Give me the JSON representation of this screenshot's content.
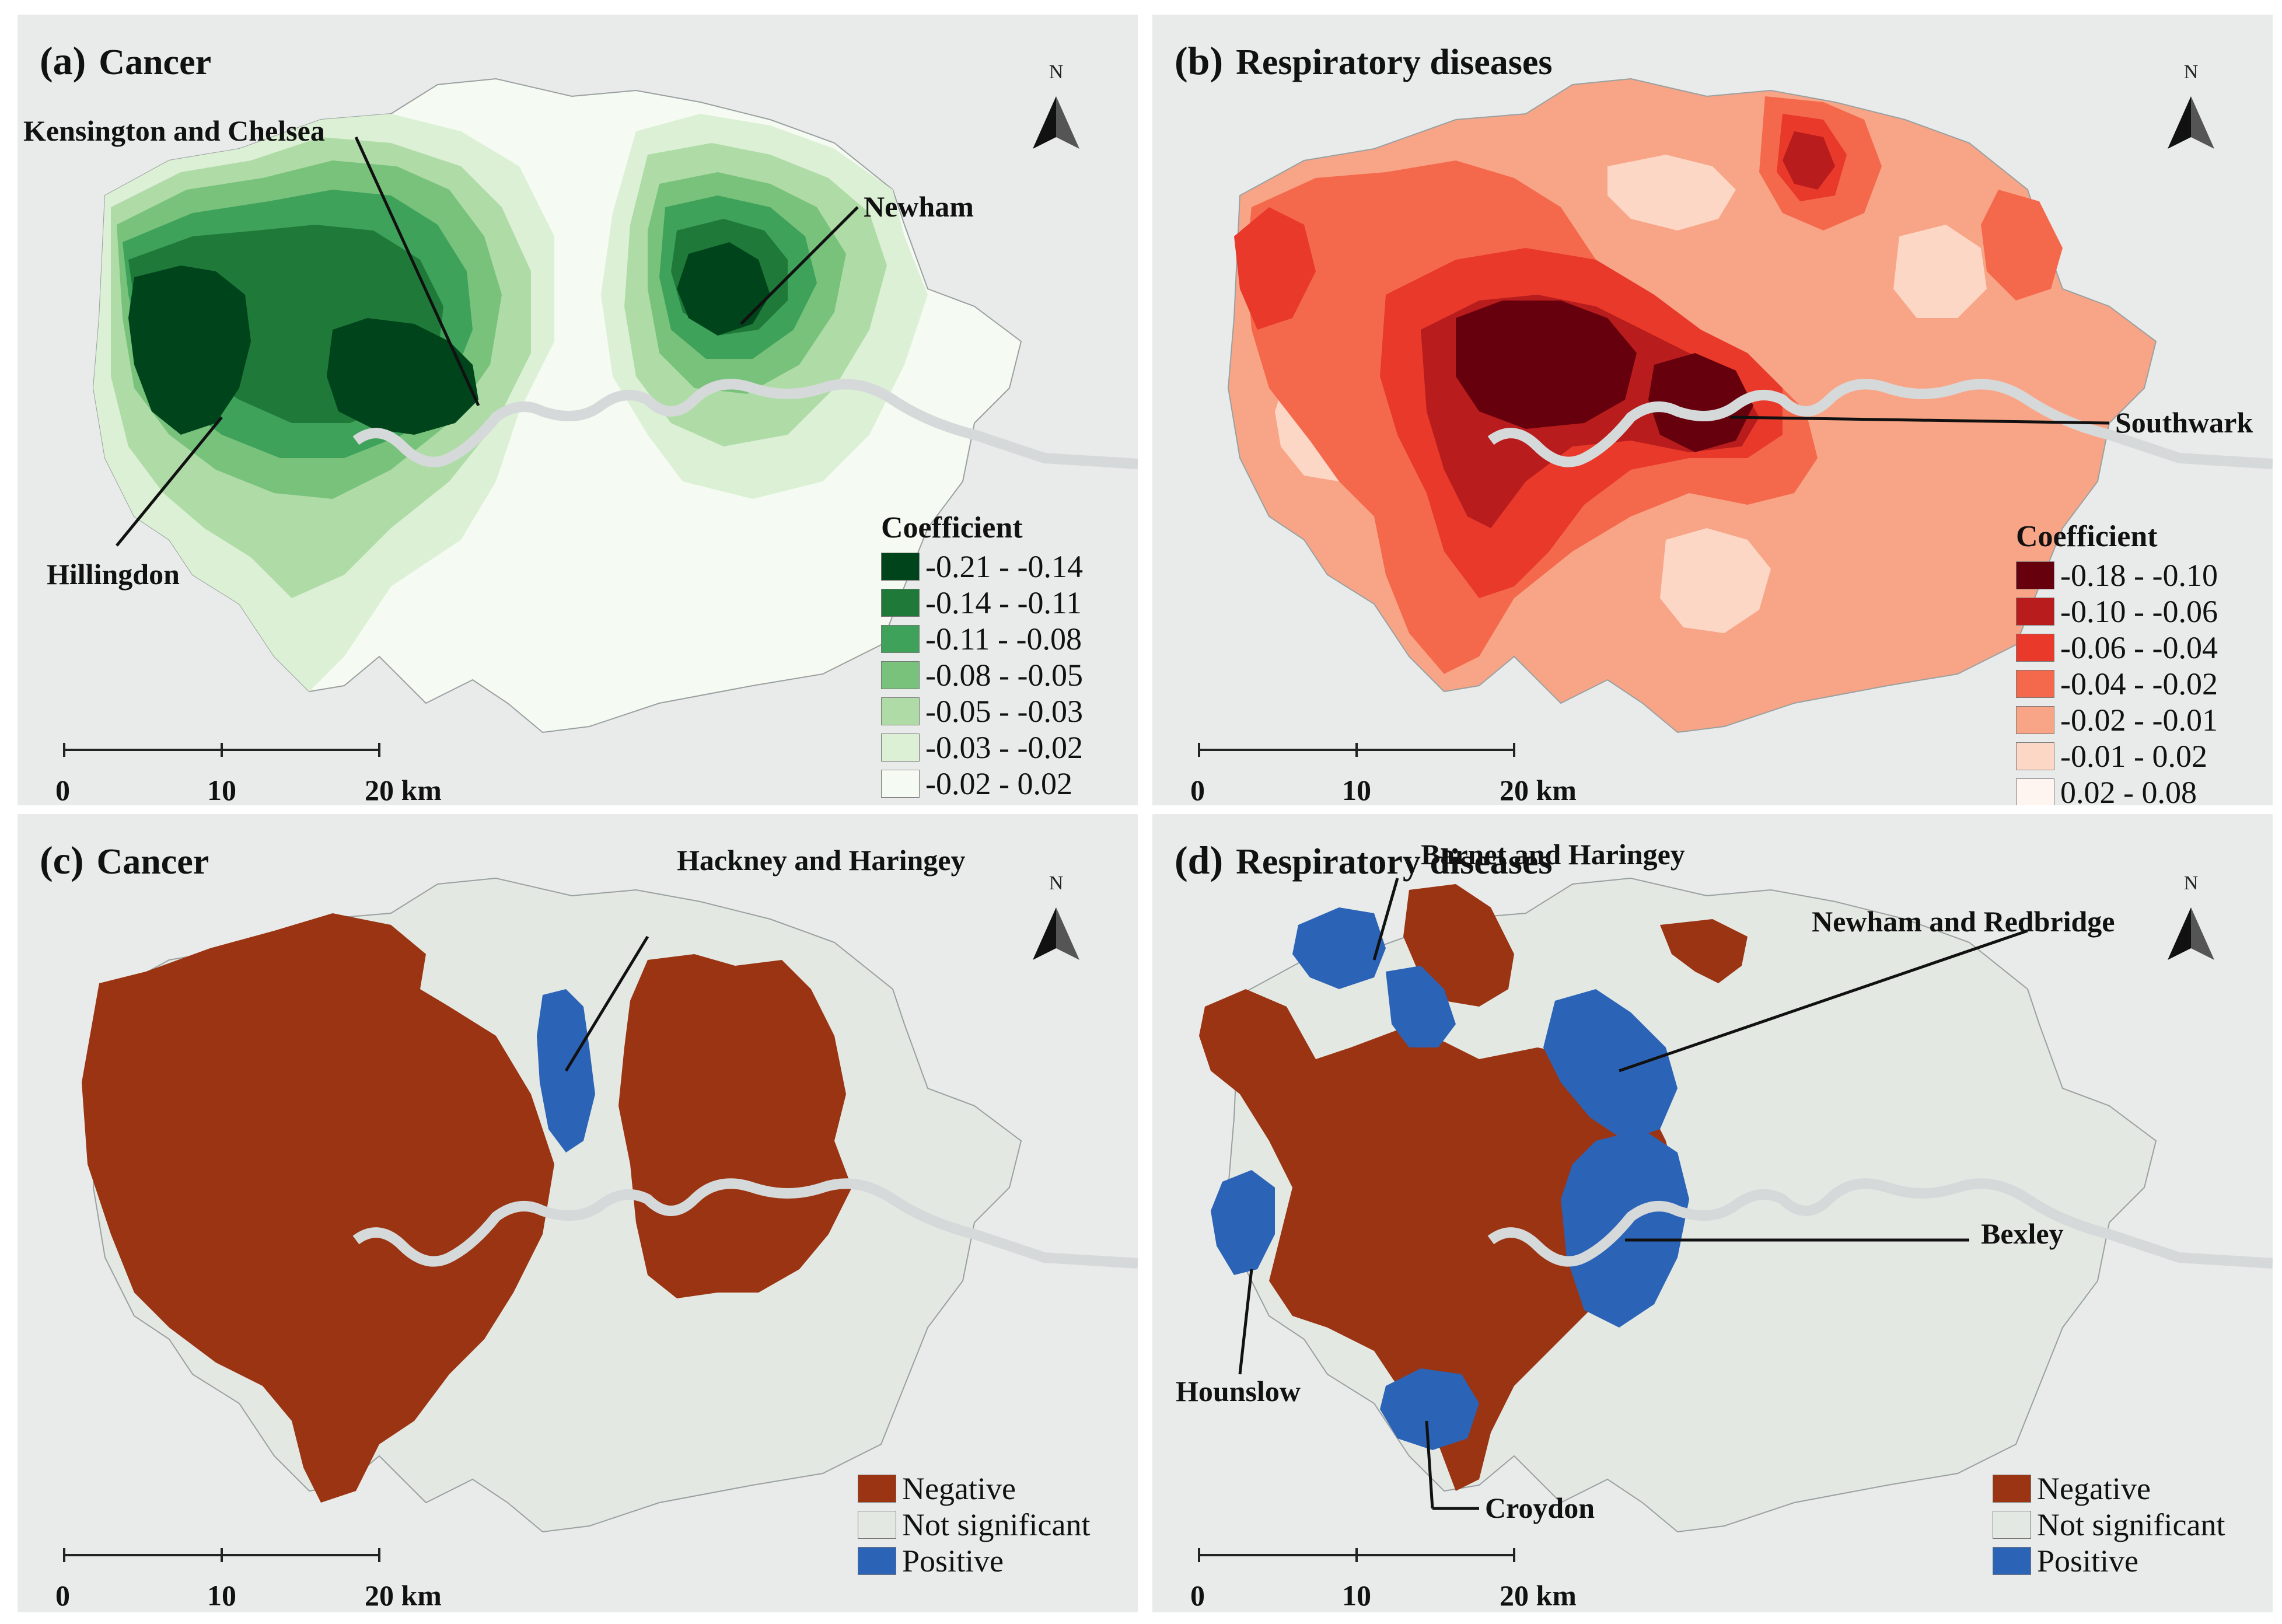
{
  "panels": [
    {
      "letter": "(a)",
      "title": "Cancer",
      "callouts": [
        "Kensington and Chelsea",
        "Newham",
        "Hillingdon"
      ],
      "legend": {
        "title": "Coefficient",
        "items": [
          {
            "label": "-0.21 - -0.14",
            "color": "#00441b"
          },
          {
            "label": "-0.14 - -0.11",
            "color": "#1f7a3a"
          },
          {
            "label": "-0.11 - -0.08",
            "color": "#3fa25a"
          },
          {
            "label": "-0.08 - -0.05",
            "color": "#79c27c"
          },
          {
            "label": "-0.05 - -0.03",
            "color": "#afdca6"
          },
          {
            "label": "-0.03 - -0.02",
            "color": "#dbf0d4"
          },
          {
            "label": "-0.02 -  0.02",
            "color": "#f5fbf2"
          }
        ]
      },
      "scale": {
        "ticks": [
          "0",
          "10",
          "20 km"
        ]
      },
      "north": "N"
    },
    {
      "letter": "(b)",
      "title": "Respiratory diseases",
      "callouts": [
        "Southwark"
      ],
      "legend": {
        "title": "Coefficient",
        "items": [
          {
            "label": "-0.18 - -0.10",
            "color": "#67000d"
          },
          {
            "label": "-0.10 - -0.06",
            "color": "#b91c1c"
          },
          {
            "label": "-0.06 - -0.04",
            "color": "#e8392a"
          },
          {
            "label": "-0.04 - -0.02",
            "color": "#f4694c"
          },
          {
            "label": "-0.02 - -0.01",
            "color": "#f8a587"
          },
          {
            "label": "-0.01 - 0.02",
            "color": "#fcd7c6"
          },
          {
            "label": "0.02 - 0.08",
            "color": "#fff5f0"
          }
        ]
      },
      "scale": {
        "ticks": [
          "0",
          "10",
          "20 km"
        ]
      },
      "north": "N"
    },
    {
      "letter": "(c)",
      "title": "Cancer",
      "callouts": [
        "Hackney and  Haringey"
      ],
      "legend": {
        "items": [
          {
            "label": "Negative",
            "color": "#9a3412"
          },
          {
            "label": "Not significant",
            "color": "#e3e8e3"
          },
          {
            "label": "Positive",
            "color": "#2b63b7"
          }
        ]
      },
      "scale": {
        "ticks": [
          "0",
          "10",
          "20 km"
        ]
      },
      "north": "N"
    },
    {
      "letter": "(d)",
      "title": "Respiratory diseases",
      "callouts": [
        "Barnet and Haringey",
        "Newham and Redbridge",
        "Bexley",
        "Hounslow",
        "Croydon"
      ],
      "legend": {
        "items": [
          {
            "label": "Negative",
            "color": "#9a3412"
          },
          {
            "label": "Not significant",
            "color": "#e3e8e3"
          },
          {
            "label": "Positive",
            "color": "#2b63b7"
          }
        ]
      },
      "scale": {
        "ticks": [
          "0",
          "10",
          "20 km"
        ]
      },
      "north": "N"
    }
  ],
  "colors": {
    "basemap": "#e9eaea",
    "river": "#cfd2d4",
    "boundary": "#9aa0a0"
  }
}
